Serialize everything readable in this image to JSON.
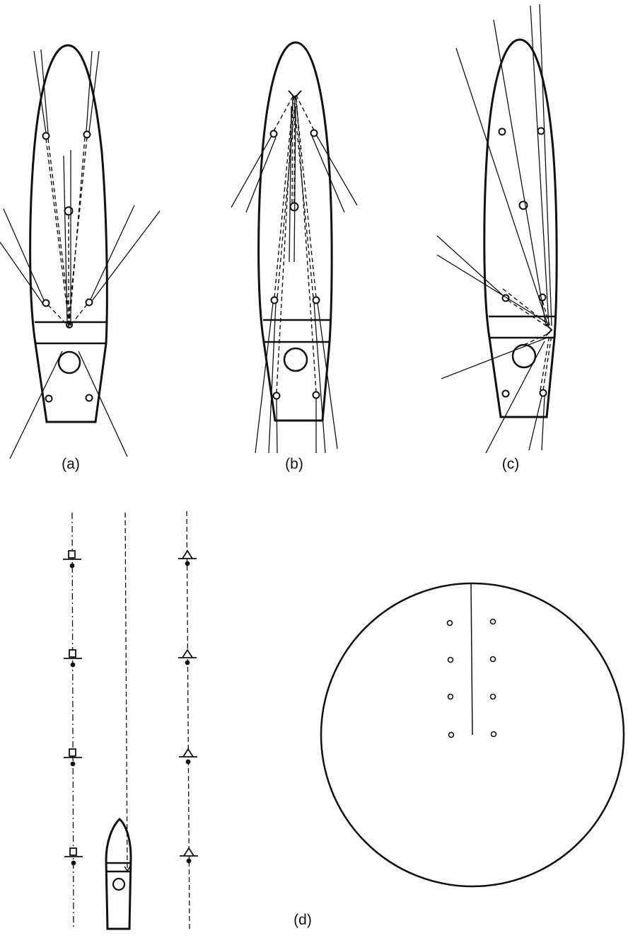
{
  "panels": {
    "a": {
      "label": "(a)"
    },
    "b": {
      "label": "(b)"
    },
    "c": {
      "label": "(c)"
    },
    "d": {
      "label": "(d)"
    }
  },
  "colors": {
    "ink": "#111111",
    "background": "#ffffff"
  }
}
